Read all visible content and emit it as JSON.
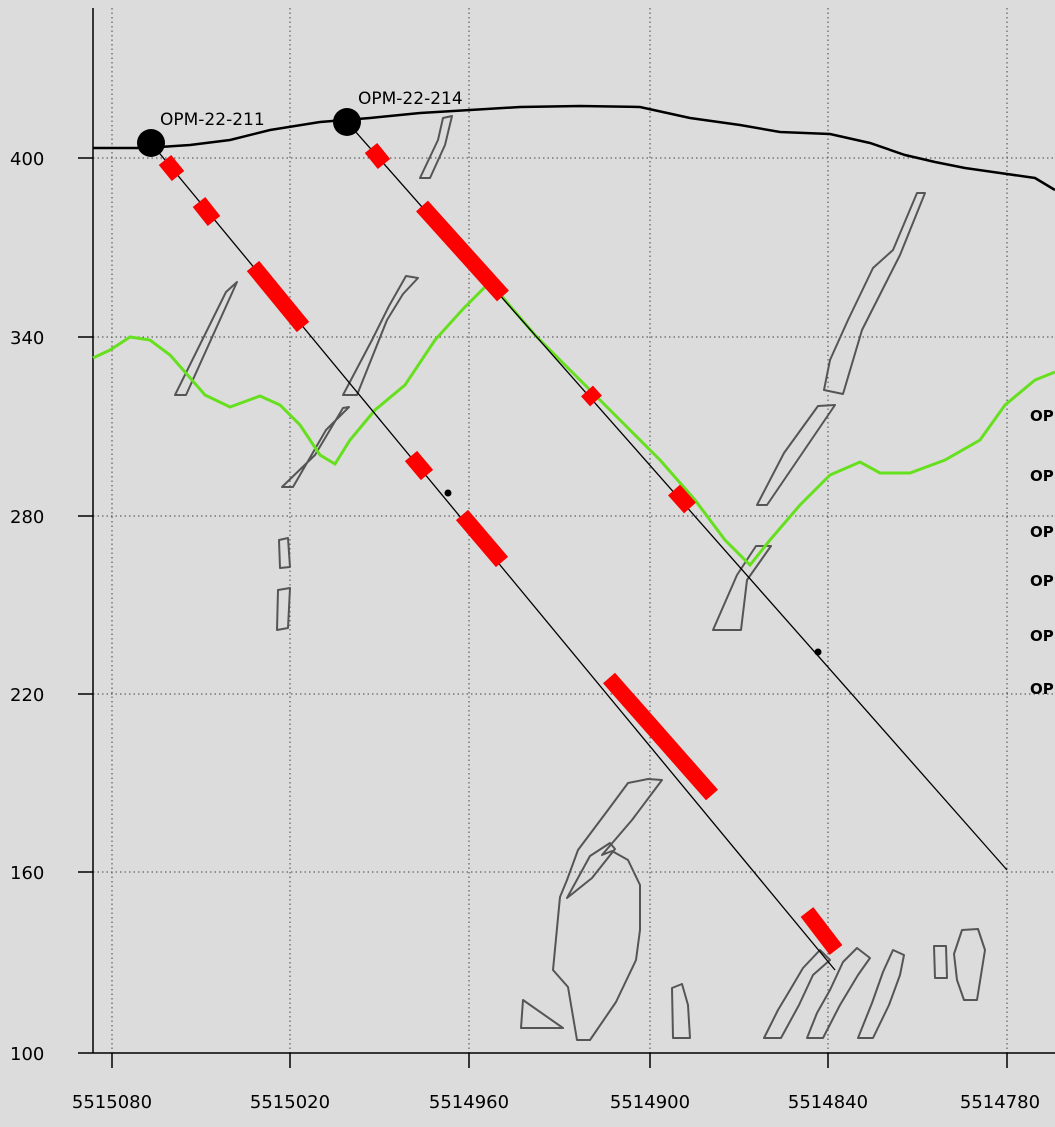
{
  "section": {
    "x_axis": {
      "ticks": [
        "5515080",
        "5515020",
        "5514960",
        "5514900",
        "5514840",
        "5514780"
      ]
    },
    "y_axis": {
      "ticks": [
        "400",
        "340",
        "280",
        "220",
        "160",
        "100"
      ]
    },
    "grid": "dotted",
    "colors": {
      "background": "#dcdcdc",
      "topography": "#000000",
      "overburden_contact": "#66e01e",
      "intercepts": "#ff0000",
      "geology_outlines": "#555555",
      "drillhole_trace": "#000000"
    },
    "holes": [
      {
        "label": "OPM-22-211"
      },
      {
        "label": "OPM-22-214"
      }
    ],
    "cut_off_labels": [
      "OP",
      "OP",
      "OP",
      "OP",
      "OP",
      "OP"
    ]
  }
}
